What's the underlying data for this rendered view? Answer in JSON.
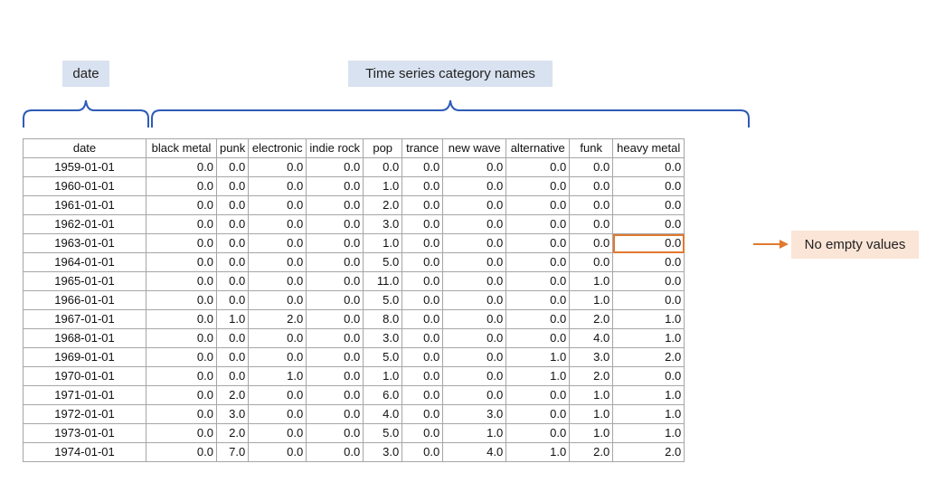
{
  "labels": {
    "date": "date",
    "categories": "Time series category names",
    "note": "No empty values"
  },
  "colors": {
    "brace": "#2e5bb8",
    "label_bg": "#d9e2f0",
    "highlight": "#e07a30",
    "note_bg": "#fbe5d6"
  },
  "table": {
    "headers": [
      "date",
      "black metal",
      "punk",
      "electronic",
      "indie rock",
      "pop",
      "trance",
      "new wave",
      "alternative",
      "funk",
      "heavy metal"
    ],
    "rows": [
      [
        "1959-01-01",
        "0.0",
        "0.0",
        "0.0",
        "0.0",
        "0.0",
        "0.0",
        "0.0",
        "0.0",
        "0.0",
        "0.0"
      ],
      [
        "1960-01-01",
        "0.0",
        "0.0",
        "0.0",
        "0.0",
        "1.0",
        "0.0",
        "0.0",
        "0.0",
        "0.0",
        "0.0"
      ],
      [
        "1961-01-01",
        "0.0",
        "0.0",
        "0.0",
        "0.0",
        "2.0",
        "0.0",
        "0.0",
        "0.0",
        "0.0",
        "0.0"
      ],
      [
        "1962-01-01",
        "0.0",
        "0.0",
        "0.0",
        "0.0",
        "3.0",
        "0.0",
        "0.0",
        "0.0",
        "0.0",
        "0.0"
      ],
      [
        "1963-01-01",
        "0.0",
        "0.0",
        "0.0",
        "0.0",
        "1.0",
        "0.0",
        "0.0",
        "0.0",
        "0.0",
        "0.0"
      ],
      [
        "1964-01-01",
        "0.0",
        "0.0",
        "0.0",
        "0.0",
        "5.0",
        "0.0",
        "0.0",
        "0.0",
        "0.0",
        "0.0"
      ],
      [
        "1965-01-01",
        "0.0",
        "0.0",
        "0.0",
        "0.0",
        "11.0",
        "0.0",
        "0.0",
        "0.0",
        "1.0",
        "0.0"
      ],
      [
        "1966-01-01",
        "0.0",
        "0.0",
        "0.0",
        "0.0",
        "5.0",
        "0.0",
        "0.0",
        "0.0",
        "1.0",
        "0.0"
      ],
      [
        "1967-01-01",
        "0.0",
        "1.0",
        "2.0",
        "0.0",
        "8.0",
        "0.0",
        "0.0",
        "0.0",
        "2.0",
        "1.0"
      ],
      [
        "1968-01-01",
        "0.0",
        "0.0",
        "0.0",
        "0.0",
        "3.0",
        "0.0",
        "0.0",
        "0.0",
        "4.0",
        "1.0"
      ],
      [
        "1969-01-01",
        "0.0",
        "0.0",
        "0.0",
        "0.0",
        "5.0",
        "0.0",
        "0.0",
        "1.0",
        "3.0",
        "2.0"
      ],
      [
        "1970-01-01",
        "0.0",
        "0.0",
        "1.0",
        "0.0",
        "1.0",
        "0.0",
        "0.0",
        "1.0",
        "2.0",
        "0.0"
      ],
      [
        "1971-01-01",
        "0.0",
        "2.0",
        "0.0",
        "0.0",
        "6.0",
        "0.0",
        "0.0",
        "0.0",
        "1.0",
        "1.0"
      ],
      [
        "1972-01-01",
        "0.0",
        "3.0",
        "0.0",
        "0.0",
        "4.0",
        "0.0",
        "3.0",
        "0.0",
        "1.0",
        "1.0"
      ],
      [
        "1973-01-01",
        "0.0",
        "2.0",
        "0.0",
        "0.0",
        "5.0",
        "0.0",
        "1.0",
        "0.0",
        "1.0",
        "1.0"
      ],
      [
        "1974-01-01",
        "0.0",
        "7.0",
        "0.0",
        "0.0",
        "3.0",
        "0.0",
        "4.0",
        "1.0",
        "2.0",
        "2.0"
      ]
    ]
  }
}
